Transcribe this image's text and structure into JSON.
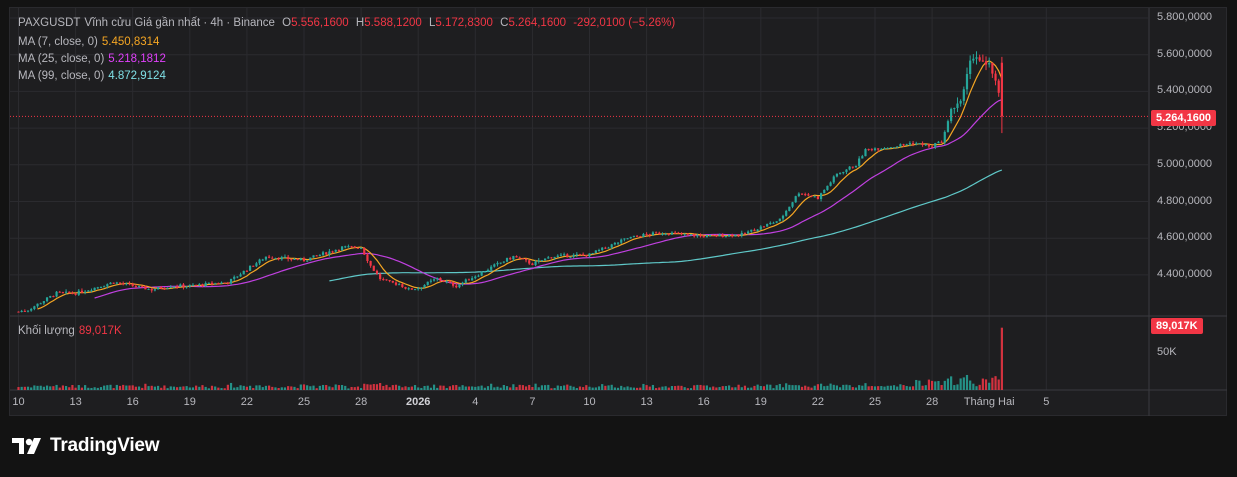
{
  "legend": {
    "symbol": "PAXGUSDT",
    "description": "Vĩnh cửu Giá gần nhất · 4h · Binance",
    "open_label": "O",
    "open": "5.556,1600",
    "high_label": "H",
    "high": "5.588,1200",
    "low_label": "L",
    "low": "5.172,8300",
    "close_label": "C",
    "close": "5.264,1600",
    "change": "-292,0100 (−5.26%)",
    "ma7_label": "MA (7, close, 0)",
    "ma7_value": "5.450,8314",
    "ma25_label": "MA (25, close, 0)",
    "ma25_value": "5.218,1812",
    "ma99_label": "MA (99, close, 0)",
    "ma99_value": "4.872,9124"
  },
  "volume_legend": {
    "label": "Khối lượng",
    "value": "89,017K"
  },
  "price_axis": {
    "ticks": [
      "5.800,0000",
      "5.600,0000",
      "5.400,0000",
      "5.200,0000",
      "5.000,0000",
      "4.800,0000",
      "4.600,0000",
      "4.400,0000"
    ],
    "current_price_tag": "5.264,1600"
  },
  "volume_axis": {
    "ticks": [
      "50K"
    ],
    "current_volume_tag": "89,017K"
  },
  "time_axis": {
    "ticks": [
      "10",
      "13",
      "16",
      "19",
      "22",
      "25",
      "28",
      "2026",
      "4",
      "7",
      "10",
      "13",
      "16",
      "19",
      "22",
      "25",
      "28",
      "Tháng Hai",
      "5"
    ]
  },
  "branding": {
    "name": "TradingView"
  },
  "colors": {
    "up": "#26a69a",
    "down": "#f23645",
    "ma7": "#f5a623",
    "ma25": "#c040e0",
    "ma99": "#5fc8c8",
    "background": "#1e1e20",
    "grid": "#2b2b2f",
    "text": "#b7b7bd"
  },
  "chart_data": {
    "type": "candlestick",
    "title": "PAXGUSDT Vĩnh cửu Giá gần nhất · 4h · Binance",
    "interval": "4h",
    "ylim": [
      4200,
      5800
    ],
    "volume_ylim": [
      0,
      100
    ],
    "volume_unit": "K",
    "trend_anchors": {
      "days": [
        0,
        0.5,
        2,
        3,
        5,
        7,
        8,
        9,
        11,
        13,
        15,
        17,
        18,
        18.5,
        19,
        19.4,
        20,
        20.5,
        21,
        22,
        23,
        25,
        26,
        27,
        28,
        30,
        32,
        33,
        34,
        36,
        38,
        39,
        40,
        41,
        42,
        43,
        44,
        44.5,
        45,
        46,
        47,
        48,
        48.5,
        49,
        49.5,
        50,
        50.3,
        50.7,
        51,
        51.5,
        51.8
      ],
      "close": [
        4200,
        4210,
        4300,
        4300,
        4360,
        4320,
        4340,
        4340,
        4360,
        4500,
        4480,
        4550,
        4550,
        4450,
        4380,
        4360,
        4350,
        4320,
        4330,
        4380,
        4340,
        4450,
        4500,
        4460,
        4500,
        4510,
        4600,
        4620,
        4630,
        4610,
        4620,
        4660,
        4700,
        4850,
        4820,
        4950,
        5000,
        5080,
        5090,
        5100,
        5120,
        5100,
        5130,
        5300,
        5350,
        5560,
        5580,
        5560,
        5550,
        5400,
        5264
      ]
    },
    "last_candle": {
      "open": 5556.16,
      "high": 5588.12,
      "low": 5172.83,
      "close": 5264.16,
      "change": -292.01,
      "change_percent": -5.26,
      "volume_k": 89.017
    },
    "moving_averages": [
      {
        "name": "MA (7, close, 0)",
        "period": 7,
        "last": 5450.8314
      },
      {
        "name": "MA (25, close, 0)",
        "period": 25,
        "last": 5218.1812
      },
      {
        "name": "MA (99, close, 0)",
        "period": 99,
        "last": 4872.9124
      }
    ],
    "x_tick_days": [
      0,
      3,
      6,
      9,
      12,
      15,
      18,
      21,
      24,
      27,
      30,
      33,
      36,
      39,
      42,
      45,
      48,
      51,
      54
    ]
  }
}
